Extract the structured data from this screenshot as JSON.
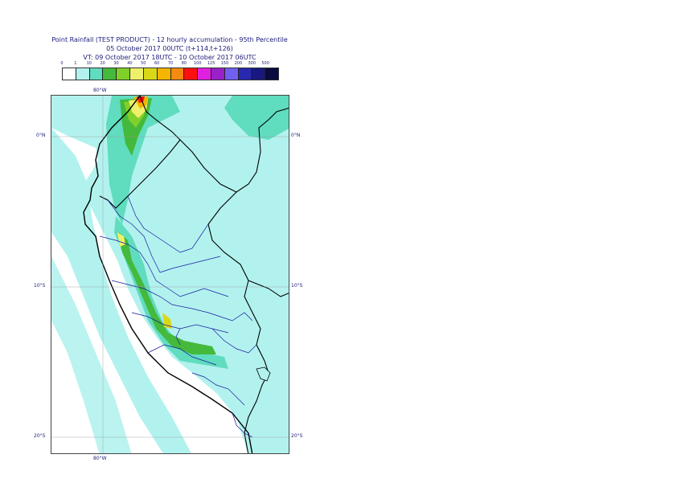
{
  "header": {
    "line1": "Point Rainfall (TEST PRODUCT) - 12 hourly accumulation - 95th Percentile",
    "line2": "05 October 2017 00UTC (t+114,t+126)",
    "line3": "VT: 09 October 2017 18UTC - 10 October 2017 06UTC"
  },
  "legend": {
    "labels": [
      "0",
      "1",
      "10",
      "20",
      "30",
      "40",
      "50",
      "60",
      "70",
      "80",
      "100",
      "125",
      "150",
      "200",
      "300",
      "500"
    ],
    "colors": [
      "#ffffff",
      "#b2f2ee",
      "#60dcbe",
      "#44b93c",
      "#80d02a",
      "#eef06a",
      "#d8d818",
      "#f4b400",
      "#f48a10",
      "#ff1010",
      "#e020e0",
      "#9a20c8",
      "#7060f0",
      "#2828b0",
      "#181880",
      "#0a0a40"
    ]
  },
  "map": {
    "lat_labels": [
      "0°N",
      "10°S",
      "20°S"
    ],
    "lon_label": "80°W",
    "colors": {
      "sea": "#ffffff",
      "light_rain": "#b2f2ee",
      "moderate_rain": "#60dcbe",
      "heavy_rain": "#44b93c",
      "very_heavy": "#80d02a",
      "yellow": "#eef06a",
      "orange": "#f4b400",
      "red": "#ff1010",
      "country_border": "#000000",
      "region_border": "#1a1aa0"
    }
  }
}
